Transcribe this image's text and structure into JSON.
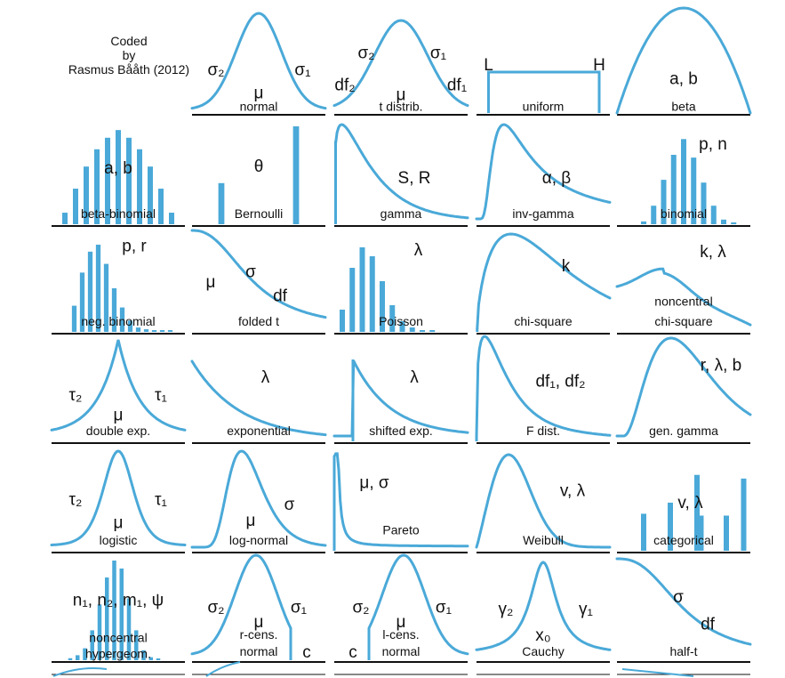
{
  "credit": {
    "line1": "Coded",
    "line2": "by",
    "line3": "Rasmus Bååth (2012)"
  },
  "colors": {
    "curve": "#4aa9d8",
    "bar": "#4aa9d8",
    "axis": "#111111",
    "text": "#111111"
  },
  "distributions": [
    {
      "name": "normal",
      "params": [
        "σ₂",
        "σ₁",
        "μ"
      ]
    },
    {
      "name": "t distrib.",
      "params": [
        "σ₂",
        "σ₁",
        "df₂",
        "df₁",
        "μ"
      ]
    },
    {
      "name": "uniform",
      "params": [
        "L",
        "H"
      ]
    },
    {
      "name": "beta",
      "params": [
        "a, b"
      ]
    },
    {
      "name": "beta-binomial",
      "params": [
        "a, b"
      ]
    },
    {
      "name": "Bernoulli",
      "params": [
        "θ"
      ]
    },
    {
      "name": "gamma",
      "params": [
        "S, R"
      ]
    },
    {
      "name": "inv-gamma",
      "params": [
        "α, β"
      ]
    },
    {
      "name": "binomial",
      "params": [
        "p, n"
      ]
    },
    {
      "name": "neg. binomial",
      "params": [
        "p, r"
      ]
    },
    {
      "name": "folded t",
      "params": [
        "μ",
        "σ",
        "df"
      ]
    },
    {
      "name": "Poisson",
      "params": [
        "λ"
      ]
    },
    {
      "name": "chi-square",
      "params": [
        "k"
      ]
    },
    {
      "name": "noncentral chi-square",
      "lines": [
        "noncentral",
        "chi-square"
      ],
      "params": [
        "k, λ"
      ]
    },
    {
      "name": "double exp.",
      "params": [
        "τ₂",
        "τ₁",
        "μ"
      ]
    },
    {
      "name": "exponential",
      "params": [
        "λ"
      ]
    },
    {
      "name": "shifted exp.",
      "params": [
        "λ"
      ]
    },
    {
      "name": "F dist.",
      "params": [
        "df₁, df₂"
      ]
    },
    {
      "name": "gen. gamma",
      "params": [
        "r, λ, b"
      ]
    },
    {
      "name": "logistic",
      "params": [
        "τ₂",
        "τ₁",
        "μ"
      ]
    },
    {
      "name": "log-normal",
      "params": [
        "μ",
        "σ"
      ]
    },
    {
      "name": "Pareto",
      "params": [
        "μ, σ"
      ]
    },
    {
      "name": "Weibull",
      "params": [
        "v, λ"
      ]
    },
    {
      "name": "categorical",
      "params": [
        "v, λ"
      ]
    },
    {
      "name": "noncentral hypergeom.",
      "lines": [
        "noncentral",
        "hypergeom."
      ],
      "params": [
        "n₁, n₂, m₁, ψ"
      ]
    },
    {
      "name": "r-cens. normal",
      "lines": [
        "r-cens.",
        "normal"
      ],
      "params": [
        "σ₂",
        "σ₁",
        "μ",
        "c"
      ]
    },
    {
      "name": "l-cens. normal",
      "lines": [
        "l-cens.",
        "normal"
      ],
      "params": [
        "σ₂",
        "σ₁",
        "μ",
        "c"
      ]
    },
    {
      "name": "Cauchy",
      "params": [
        "γ₂",
        "γ₁",
        "x₀"
      ]
    },
    {
      "name": "half-t",
      "params": [
        "σ",
        "df"
      ]
    }
  ]
}
